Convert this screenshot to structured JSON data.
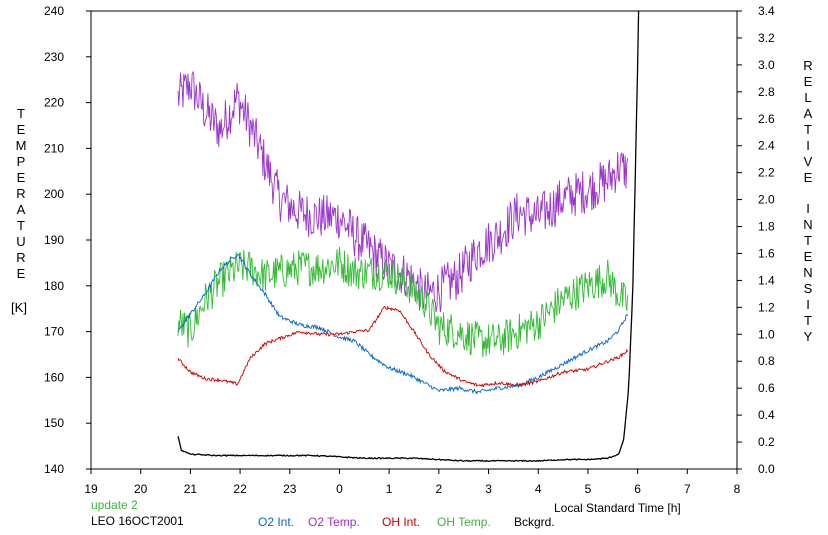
{
  "chart_data": {
    "type": "line",
    "title": "",
    "left_axis": {
      "label_letters": [
        "T",
        "E",
        "M",
        "P",
        "E",
        "R",
        "A",
        "T",
        "U",
        "R",
        "E"
      ],
      "unit": "[K]",
      "ylim": [
        140,
        240
      ],
      "ticks": [
        "140",
        "150",
        "160",
        "170",
        "180",
        "190",
        "200",
        "210",
        "220",
        "230",
        "240"
      ]
    },
    "right_axis": {
      "label_letters_1": [
        "R",
        "E",
        "L",
        "A",
        "T",
        "I",
        "V",
        "E"
      ],
      "label_letters_2": [
        "I",
        "N",
        "T",
        "E",
        "N",
        "S",
        "I",
        "T",
        "Y"
      ],
      "ylim": [
        0.0,
        3.4
      ],
      "ticks": [
        "0.0",
        "0.2",
        "0.4",
        "0.6",
        "0.8",
        "1.0",
        "1.2",
        "1.4",
        "1.6",
        "1.8",
        "2.0",
        "2.2",
        "2.4",
        "2.6",
        "2.8",
        "3.0",
        "3.2",
        "3.4"
      ]
    },
    "x_axis": {
      "label": "Local Standard Time [h]",
      "xlim": [
        19,
        32
      ],
      "ticks": [
        "19",
        "20",
        "21",
        "22",
        "23",
        "0",
        "1",
        "2",
        "3",
        "4",
        "5",
        "6",
        "7",
        "8"
      ]
    },
    "series": [
      {
        "name": "O2 Int.",
        "color": "#0066cc",
        "axis": "right",
        "noise": 0.015,
        "points": [
          [
            20.75,
            1.02
          ],
          [
            21.0,
            1.15
          ],
          [
            21.3,
            1.3
          ],
          [
            21.6,
            1.48
          ],
          [
            21.95,
            1.6
          ],
          [
            22.2,
            1.45
          ],
          [
            22.5,
            1.3
          ],
          [
            22.8,
            1.13
          ],
          [
            23.2,
            1.07
          ],
          [
            23.6,
            1.05
          ],
          [
            24.0,
            0.98
          ],
          [
            24.3,
            0.95
          ],
          [
            24.6,
            0.85
          ],
          [
            25.0,
            0.75
          ],
          [
            25.4,
            0.7
          ],
          [
            25.7,
            0.64
          ],
          [
            26.0,
            0.58
          ],
          [
            26.4,
            0.6
          ],
          [
            26.8,
            0.57
          ],
          [
            27.2,
            0.6
          ],
          [
            27.6,
            0.62
          ],
          [
            28.0,
            0.68
          ],
          [
            28.5,
            0.78
          ],
          [
            29.0,
            0.88
          ],
          [
            29.4,
            0.95
          ],
          [
            29.62,
            1.03
          ],
          [
            29.8,
            1.15
          ]
        ]
      },
      {
        "name": "O2 Temp.",
        "color": "#9933cc",
        "axis": "left",
        "noise": 5,
        "points": [
          [
            20.75,
            221
          ],
          [
            21.0,
            224
          ],
          [
            21.3,
            218
          ],
          [
            21.6,
            214
          ],
          [
            21.95,
            221
          ],
          [
            22.2,
            215
          ],
          [
            22.5,
            207
          ],
          [
            22.8,
            199
          ],
          [
            23.2,
            196
          ],
          [
            23.6,
            195
          ],
          [
            24.0,
            195
          ],
          [
            24.3,
            191
          ],
          [
            24.6,
            188
          ],
          [
            25.0,
            184
          ],
          [
            25.4,
            182
          ],
          [
            25.7,
            178
          ],
          [
            26.0,
            179
          ],
          [
            26.4,
            182
          ],
          [
            26.8,
            188
          ],
          [
            27.2,
            191
          ],
          [
            27.6,
            196
          ],
          [
            28.0,
            195
          ],
          [
            28.5,
            199
          ],
          [
            29.0,
            201
          ],
          [
            29.4,
            203
          ],
          [
            29.62,
            206
          ],
          [
            29.8,
            205
          ]
        ]
      },
      {
        "name": "OH Int.",
        "color": "#cc0000",
        "axis": "right",
        "noise": 0.012,
        "points": [
          [
            20.75,
            0.82
          ],
          [
            21.0,
            0.72
          ],
          [
            21.3,
            0.67
          ],
          [
            21.6,
            0.66
          ],
          [
            21.95,
            0.63
          ],
          [
            22.2,
            0.82
          ],
          [
            22.5,
            0.93
          ],
          [
            22.8,
            0.97
          ],
          [
            23.2,
            1.02
          ],
          [
            23.6,
            1.0
          ],
          [
            24.0,
            1.0
          ],
          [
            24.3,
            1.02
          ],
          [
            24.6,
            1.03
          ],
          [
            24.9,
            1.2
          ],
          [
            25.2,
            1.18
          ],
          [
            25.5,
            1.02
          ],
          [
            25.8,
            0.85
          ],
          [
            26.1,
            0.73
          ],
          [
            26.5,
            0.65
          ],
          [
            26.8,
            0.62
          ],
          [
            27.2,
            0.64
          ],
          [
            27.6,
            0.62
          ],
          [
            28.0,
            0.65
          ],
          [
            28.5,
            0.72
          ],
          [
            29.0,
            0.74
          ],
          [
            29.4,
            0.8
          ],
          [
            29.62,
            0.83
          ],
          [
            29.8,
            0.88
          ]
        ]
      },
      {
        "name": "OH Temp.",
        "color": "#33bb33",
        "axis": "left",
        "noise": 4,
        "points": [
          [
            20.75,
            172
          ],
          [
            21.0,
            170
          ],
          [
            21.3,
            177
          ],
          [
            21.6,
            181
          ],
          [
            21.95,
            184
          ],
          [
            22.2,
            184
          ],
          [
            22.5,
            182
          ],
          [
            22.8,
            183
          ],
          [
            23.2,
            184
          ],
          [
            23.6,
            184
          ],
          [
            24.0,
            185
          ],
          [
            24.3,
            183
          ],
          [
            24.6,
            183
          ],
          [
            25.0,
            183
          ],
          [
            25.4,
            180
          ],
          [
            25.7,
            177
          ],
          [
            26.0,
            171
          ],
          [
            26.4,
            170
          ],
          [
            26.8,
            168
          ],
          [
            27.2,
            168
          ],
          [
            27.6,
            170
          ],
          [
            28.0,
            172
          ],
          [
            28.5,
            177
          ],
          [
            29.0,
            180
          ],
          [
            29.4,
            182
          ],
          [
            29.62,
            178
          ],
          [
            29.8,
            176
          ]
        ]
      },
      {
        "name": "Bckgrd.",
        "color": "#000000",
        "axis": "right",
        "noise": 0.004,
        "points": [
          [
            20.75,
            0.24
          ],
          [
            20.82,
            0.14
          ],
          [
            21.0,
            0.11
          ],
          [
            21.5,
            0.1
          ],
          [
            22.0,
            0.1
          ],
          [
            22.5,
            0.1
          ],
          [
            23.0,
            0.1
          ],
          [
            23.5,
            0.1
          ],
          [
            24.0,
            0.09
          ],
          [
            24.5,
            0.08
          ],
          [
            25.0,
            0.08
          ],
          [
            25.5,
            0.08
          ],
          [
            26.0,
            0.07
          ],
          [
            26.5,
            0.06
          ],
          [
            27.0,
            0.06
          ],
          [
            27.5,
            0.06
          ],
          [
            28.0,
            0.06
          ],
          [
            28.5,
            0.07
          ],
          [
            29.0,
            0.07
          ],
          [
            29.4,
            0.08
          ],
          [
            29.62,
            0.11
          ],
          [
            29.72,
            0.22
          ],
          [
            29.82,
            0.6
          ],
          [
            29.9,
            1.3
          ],
          [
            29.96,
            2.3
          ],
          [
            30.0,
            3.0
          ],
          [
            30.02,
            3.4
          ]
        ]
      }
    ],
    "legend_position": "bottom",
    "legend": [
      "O2 Int.",
      "O2 Temp.",
      "OH Int.",
      "OH Temp.",
      "Bckgrd."
    ],
    "footer": {
      "update": "update 2",
      "update_color": "#33bb33",
      "station": "LEO 16OCT2001"
    },
    "grid": false
  }
}
